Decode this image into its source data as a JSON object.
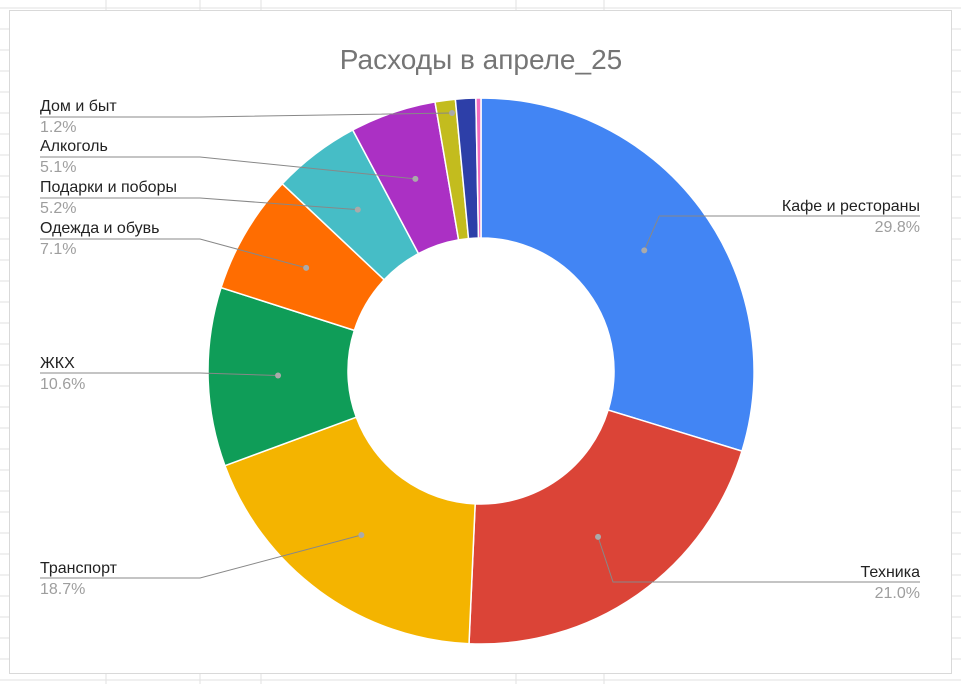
{
  "chart_data": {
    "type": "pie",
    "variant": "donut",
    "title": "Расходы в апреле_25",
    "legend": "labels",
    "slices": [
      {
        "label": "Кафе и рестораны",
        "percent_label": "29.8%",
        "value": 29.8,
        "color": "#4285F4"
      },
      {
        "label": "Техника",
        "percent_label": "21.0%",
        "value": 21.0,
        "color": "#DB4437"
      },
      {
        "label": "Транспорт",
        "percent_label": "18.7%",
        "value": 18.7,
        "color": "#F4B400"
      },
      {
        "label": "ЖКХ",
        "percent_label": "10.6%",
        "value": 10.6,
        "color": "#0F9D58"
      },
      {
        "label": "Одежда и обувь",
        "percent_label": "7.1%",
        "value": 7.1,
        "color": "#FF6D01"
      },
      {
        "label": "Подарки и поборы",
        "percent_label": "5.2%",
        "value": 5.2,
        "color": "#46BDC6"
      },
      {
        "label": "Алкоголь",
        "percent_label": "5.1%",
        "value": 5.1,
        "color": "#AB30C4"
      },
      {
        "label": "",
        "percent_label": "",
        "value": 1.2,
        "color": "#C3BC1E"
      },
      {
        "label": "Дом и быт",
        "percent_label": "1.2%",
        "value": 1.2,
        "color": "#2D3FA8"
      },
      {
        "label": "",
        "percent_label": "",
        "value": 0.3,
        "color": "#F26DC0"
      }
    ]
  }
}
